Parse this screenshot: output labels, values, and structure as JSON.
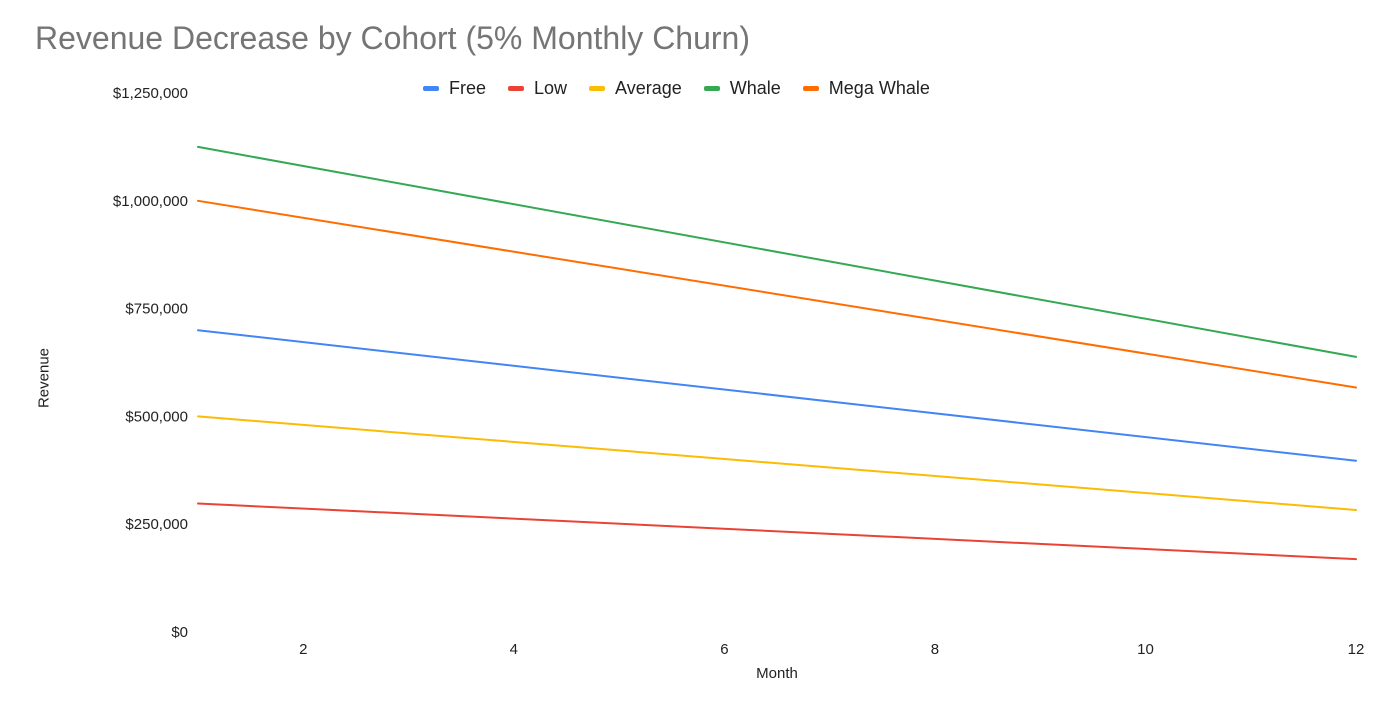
{
  "chart_data": {
    "type": "line",
    "title": "Revenue Decrease by Cohort (5% Monthly Churn)",
    "xlabel": "Month",
    "ylabel": "Revenue",
    "xlim": [
      1,
      12
    ],
    "ylim": [
      0,
      1250000
    ],
    "x_ticks": [
      2,
      4,
      6,
      8,
      10,
      12
    ],
    "x_tick_labels": [
      "2",
      "4",
      "6",
      "8",
      "10",
      "12"
    ],
    "y_ticks": [
      0,
      250000,
      500000,
      750000,
      1000000,
      1250000
    ],
    "y_tick_labels": [
      "$0",
      "$250,000",
      "$500,000",
      "$750,000",
      "$1,000,000",
      "$1,250,000"
    ],
    "grid": false,
    "legend_position": "top",
    "x": [
      1,
      12
    ],
    "series": [
      {
        "name": "Free",
        "color": "#4285f4",
        "values": [
          700000,
          397000
        ]
      },
      {
        "name": "Low",
        "color": "#ea4335",
        "values": [
          298000,
          169000
        ]
      },
      {
        "name": "Average",
        "color": "#fbbc04",
        "values": [
          500000,
          283000
        ]
      },
      {
        "name": "Whale",
        "color": "#34a853",
        "values": [
          1125000,
          638000
        ]
      },
      {
        "name": "Mega Whale",
        "color": "#ff6d01",
        "values": [
          1000000,
          567000
        ]
      }
    ]
  }
}
